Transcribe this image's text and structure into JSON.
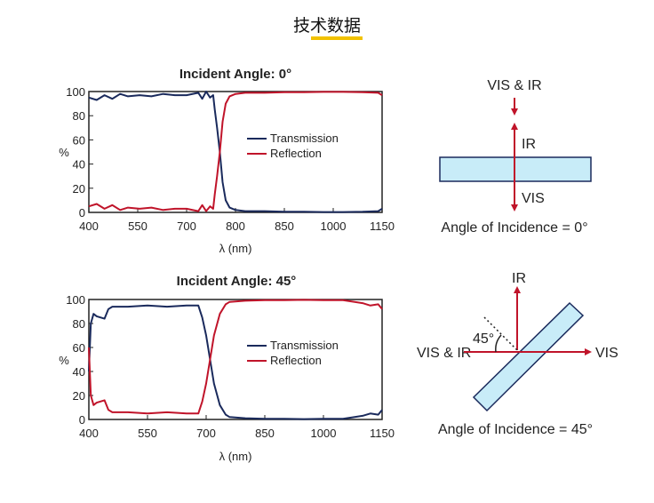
{
  "page_title": "技术数据",
  "colors": {
    "transmission": "#1a2a5c",
    "reflection": "#c0142a",
    "glass_fill": "#c8ecf8",
    "glass_stroke": "#1a2a5c",
    "arrow": "#c0142a",
    "underline": "#f2c200"
  },
  "chart_data": [
    {
      "type": "line",
      "title": "Incident Angle: 0°",
      "xlabel": "λ (nm)",
      "ylabel": "%",
      "xlim": [
        400,
        1150
      ],
      "ylim": [
        0,
        100
      ],
      "xticks": [
        400,
        550,
        700,
        800,
        850,
        1000,
        1150
      ],
      "yticks": [
        0,
        20,
        40,
        60,
        80,
        100
      ],
      "grid": false,
      "legend": "center-right",
      "series": [
        {
          "name": "Transmission",
          "color": "#1a2a5c",
          "x": [
            400,
            420,
            440,
            460,
            480,
            500,
            530,
            560,
            590,
            620,
            650,
            680,
            690,
            700,
            710,
            718,
            722,
            728,
            735,
            742,
            750,
            760,
            775,
            800,
            850,
            900,
            950,
            1000,
            1050,
            1100,
            1140,
            1150
          ],
          "y": [
            95,
            93,
            97,
            94,
            98,
            96,
            97,
            96,
            98,
            97,
            97,
            99,
            94,
            100,
            95,
            97,
            85,
            70,
            50,
            25,
            10,
            4,
            2,
            1,
            1,
            0.5,
            0.5,
            0.3,
            0.3,
            0.5,
            1,
            3
          ]
        },
        {
          "name": "Reflection",
          "color": "#c0142a",
          "x": [
            400,
            420,
            440,
            460,
            480,
            500,
            530,
            560,
            590,
            620,
            650,
            680,
            690,
            700,
            710,
            718,
            722,
            728,
            735,
            742,
            750,
            760,
            775,
            800,
            850,
            900,
            950,
            1000,
            1050,
            1100,
            1140,
            1150
          ],
          "y": [
            5,
            7,
            3,
            6,
            2,
            4,
            3,
            4,
            2,
            3,
            3,
            1,
            6,
            1,
            5,
            3,
            15,
            30,
            50,
            75,
            90,
            96,
            98,
            99,
            99,
            99.5,
            99.5,
            99.7,
            99.7,
            99.5,
            99,
            97
          ]
        }
      ]
    },
    {
      "type": "line",
      "title": "Incident Angle: 45°",
      "xlabel": "λ (nm)",
      "ylabel": "%",
      "xlim": [
        400,
        1150
      ],
      "ylim": [
        0,
        100
      ],
      "xticks": [
        400,
        550,
        700,
        850,
        1000,
        1150
      ],
      "yticks": [
        0,
        20,
        40,
        60,
        80,
        100
      ],
      "grid": false,
      "legend": "center-right",
      "series": [
        {
          "name": "Transmission",
          "color": "#1a2a5c",
          "x": [
            400,
            405,
            412,
            420,
            440,
            450,
            460,
            500,
            550,
            600,
            650,
            680,
            690,
            700,
            710,
            720,
            735,
            750,
            760,
            800,
            850,
            900,
            950,
            1000,
            1050,
            1080,
            1100,
            1120,
            1140,
            1150
          ],
          "y": [
            40,
            80,
            88,
            86,
            84,
            92,
            94,
            94,
            95,
            94,
            95,
            95,
            85,
            70,
            50,
            30,
            12,
            4,
            2,
            1,
            0.5,
            0.5,
            0.3,
            0.5,
            0.5,
            2,
            3,
            5,
            4,
            8
          ]
        },
        {
          "name": "Reflection",
          "color": "#c0142a",
          "x": [
            400,
            405,
            412,
            420,
            440,
            450,
            460,
            500,
            550,
            600,
            650,
            680,
            690,
            700,
            710,
            720,
            735,
            750,
            760,
            800,
            850,
            900,
            950,
            1000,
            1050,
            1080,
            1100,
            1120,
            1140,
            1150
          ],
          "y": [
            60,
            20,
            12,
            14,
            16,
            8,
            6,
            6,
            5,
            6,
            5,
            5,
            15,
            30,
            50,
            70,
            88,
            96,
            98,
            99,
            99.5,
            99.5,
            99.7,
            99.5,
            99.5,
            98,
            97,
            95,
            96,
            92
          ]
        }
      ]
    }
  ],
  "diagram_0deg": {
    "top_label": "VIS & IR",
    "reflected_label": "IR",
    "transmitted_label": "VIS",
    "caption": "Angle of Incidence = 0°"
  },
  "diagram_45deg": {
    "reflected_label": "IR",
    "incident_label": "VIS & IR",
    "transmitted_label": "VIS",
    "angle_label": "45°",
    "caption": "Angle of Incidence = 45°"
  }
}
